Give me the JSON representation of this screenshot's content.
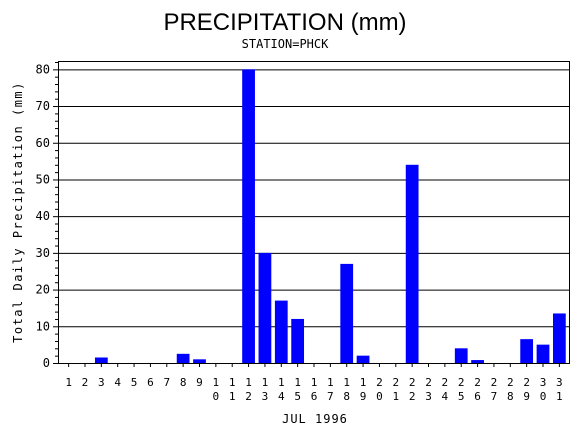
{
  "chart_data": {
    "type": "bar",
    "title": "PRECIPITATION (mm)",
    "subtitle": "STATION=PHCK",
    "xlabel": "JUL 1996",
    "ylabel": "Total Daily Precipitation (mm)",
    "ylim": [
      0,
      82
    ],
    "yticks": [
      0,
      10,
      20,
      30,
      40,
      50,
      60,
      70,
      80
    ],
    "grid": true,
    "bar_color": "#0000ff",
    "categories": [
      "1",
      "2",
      "3",
      "4",
      "5",
      "6",
      "7",
      "8",
      "9",
      "10",
      "11",
      "12",
      "13",
      "14",
      "15",
      "16",
      "17",
      "18",
      "19",
      "20",
      "21",
      "22",
      "23",
      "24",
      "25",
      "26",
      "27",
      "28",
      "29",
      "30",
      "31"
    ],
    "values": [
      0,
      0,
      1.5,
      0,
      0,
      0,
      0,
      2.5,
      1.0,
      0,
      0,
      80,
      30,
      17,
      12,
      0,
      0,
      27,
      2,
      0,
      0,
      54,
      0,
      0,
      4,
      0.8,
      0,
      0,
      6.5,
      5,
      13.5
    ]
  }
}
